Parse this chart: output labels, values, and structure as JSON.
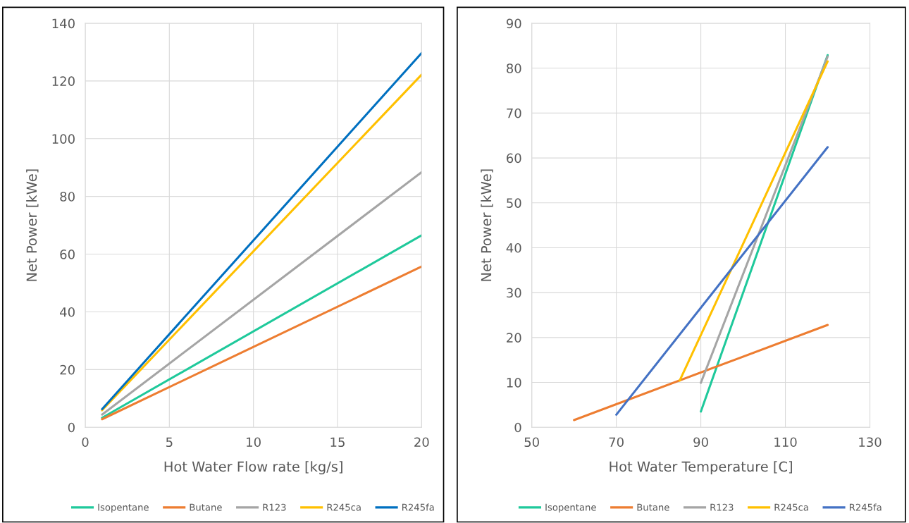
{
  "chart_data": [
    {
      "type": "line",
      "xlabel": "Hot Water Flow rate [kg/s]",
      "ylabel": "Net Power [kWe]",
      "xlim": [
        0,
        20
      ],
      "xticks": [
        0,
        5,
        10,
        15,
        20
      ],
      "ylim": [
        0,
        140
      ],
      "yticks": [
        0,
        20,
        40,
        60,
        80,
        100,
        120,
        140
      ],
      "grid": true,
      "legend": "bottom",
      "marker": "none",
      "line_style": "solid",
      "series": [
        {
          "name": "Isopentane",
          "color": "#1fc99b",
          "x": [
            1,
            20
          ],
          "values": [
            3.3,
            66.5
          ]
        },
        {
          "name": "Butane",
          "color": "#ed7d31",
          "x": [
            1,
            20
          ],
          "values": [
            2.8,
            55.7
          ]
        },
        {
          "name": "R123",
          "color": "#a5a5a5",
          "x": [
            1,
            20
          ],
          "values": [
            4.4,
            88.4
          ]
        },
        {
          "name": "R245ca",
          "color": "#ffc000",
          "x": [
            1,
            20
          ],
          "values": [
            5.9,
            122.2
          ]
        },
        {
          "name": "R245fa",
          "color": "#0070c0",
          "x": [
            1,
            20
          ],
          "values": [
            6.3,
            129.7
          ]
        }
      ]
    },
    {
      "type": "line",
      "xlabel": "Hot Water Temperature [C]",
      "ylabel": "Net Power [kWe]",
      "xlim": [
        50,
        130
      ],
      "xticks": [
        50,
        70,
        90,
        110,
        130
      ],
      "ylim": [
        0,
        90
      ],
      "yticks": [
        0,
        10,
        20,
        30,
        40,
        50,
        60,
        70,
        80,
        90
      ],
      "grid": true,
      "legend": "bottom",
      "marker": "none",
      "line_style": "solid",
      "series": [
        {
          "name": "Isopentane",
          "color": "#1fc99b",
          "x": [
            90,
            120
          ],
          "values": [
            3.5,
            82.9
          ]
        },
        {
          "name": "Butane",
          "color": "#ed7d31",
          "x": [
            60,
            120
          ],
          "values": [
            1.6,
            22.8
          ]
        },
        {
          "name": "R123",
          "color": "#a5a5a5",
          "x": [
            90,
            120
          ],
          "values": [
            9.9,
            82.6
          ]
        },
        {
          "name": "R245ca",
          "color": "#ffc000",
          "x": [
            85,
            120
          ],
          "values": [
            10.4,
            81.5
          ]
        },
        {
          "name": "R245fa",
          "color": "#4472c4",
          "x": [
            70,
            120
          ],
          "values": [
            2.8,
            62.4
          ]
        }
      ]
    }
  ]
}
